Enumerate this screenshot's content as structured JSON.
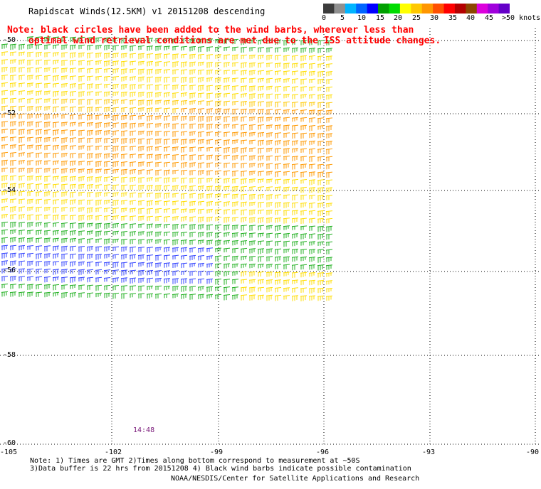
{
  "header": {
    "title": "Rapidscat Winds(12.5KM) v1 20151208 descending",
    "note_line1": "Note: black circles have been added to the wind barbs, wherever less than",
    "note_line2": "optimal wind retrieval conditions are met due to the ISS attitude changes."
  },
  "legend": {
    "labels": [
      "0",
      "5",
      "10",
      "15",
      "20",
      "25",
      "30",
      "35",
      "40",
      "45",
      ">50 knots"
    ],
    "colors": [
      "#3c3c3c",
      "#909090",
      "#00b4ff",
      "#0064ff",
      "#0000ff",
      "#00a000",
      "#00dc00",
      "#ffff00",
      "#ffc800",
      "#ff9600",
      "#ff5000",
      "#ff0000",
      "#b40000",
      "#8c4600",
      "#dc00dc",
      "#a000dc",
      "#6400c8"
    ]
  },
  "axes": {
    "lat_labels": [
      "-50",
      "-52",
      "-54",
      "-56",
      "-58",
      "-60"
    ],
    "lon_labels": [
      "-105",
      "-102",
      "-99",
      "-96",
      "-93",
      "-90"
    ]
  },
  "swath": {
    "time_label": "14:48"
  },
  "footer": {
    "line1": "Note: 1) Times are GMT 2)Times along bottom correspond to measurement at ~50S",
    "line2": "3)Data buffer is 22 hrs from 20151208 4) Black wind barbs indicate possible contamination",
    "line3": "NOAA/NESDIS/Center for Satellite Applications and Research"
  }
}
